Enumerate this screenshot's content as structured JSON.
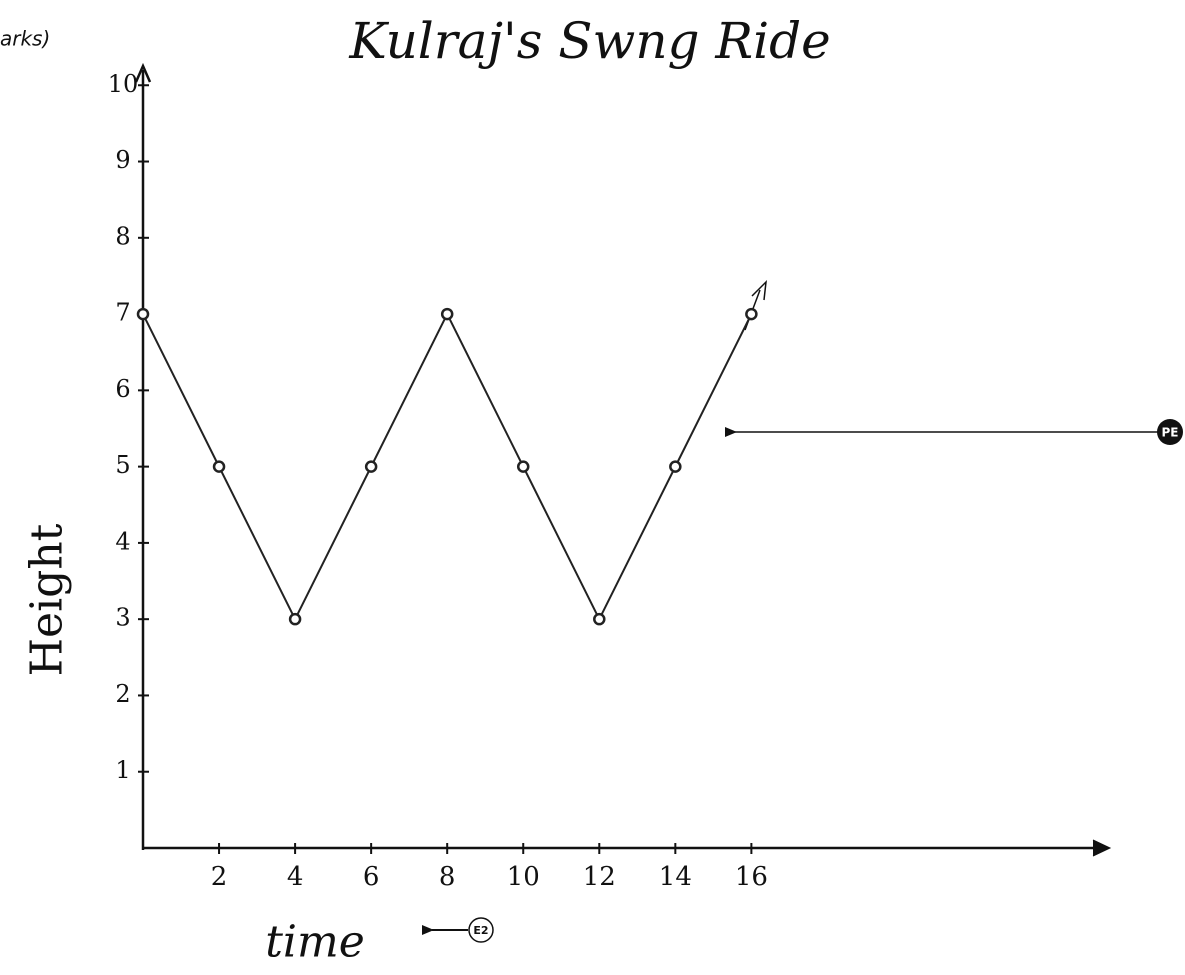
{
  "chart_data": {
    "type": "line",
    "title": "Kulraj's Swng Ride",
    "x": [
      0,
      2,
      4,
      6,
      8,
      10,
      12,
      14,
      16
    ],
    "series": [
      {
        "name": "Height",
        "color": "#222222",
        "values": [
          7,
          5,
          3,
          5,
          7,
          5,
          3,
          5,
          7
        ]
      }
    ],
    "xlabel": "time",
    "ylabel": "Height",
    "xlim": [
      0,
      25.3
    ],
    "ylim": [
      0,
      10.2
    ],
    "xticks": [
      2,
      4,
      6,
      8,
      10,
      12,
      14,
      16
    ],
    "yticks": [
      1,
      2,
      3,
      4,
      5,
      6,
      7,
      8,
      9,
      10
    ],
    "grid": false,
    "annotations": [
      "PE",
      "E2"
    ],
    "header_fragment": "arks)"
  }
}
